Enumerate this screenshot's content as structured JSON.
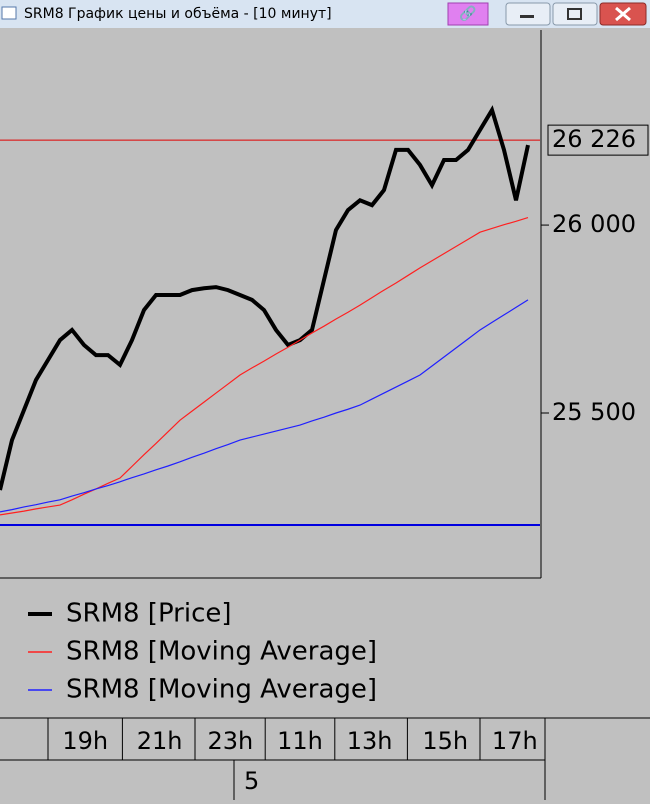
{
  "window": {
    "title": "SRM8 График цены и объёма - [10 минут]"
  },
  "chart_data": {
    "type": "line",
    "x": [
      0,
      1,
      2,
      3,
      4,
      5,
      6,
      7,
      8,
      9,
      10,
      11,
      12,
      13,
      14,
      15,
      16,
      17,
      18,
      19,
      20,
      21,
      22,
      23,
      24,
      25,
      26,
      27,
      28,
      29,
      30,
      31,
      32,
      33,
      34,
      35,
      36,
      37,
      38,
      39,
      40,
      41,
      42,
      43,
      44
    ],
    "xlim": [
      0,
      45
    ],
    "xticks": [
      {
        "value": 7.1,
        "label": "19h"
      },
      {
        "value": 13.3,
        "label": "21h"
      },
      {
        "value": 19.2,
        "label": "23h"
      },
      {
        "value": 25,
        "label": "11h"
      },
      {
        "value": 30.8,
        "label": "13h"
      },
      {
        "value": 37.1,
        "label": "15h"
      },
      {
        "value": 42.9,
        "label": "17h"
      }
    ],
    "date_label": "5",
    "ylim": [
      25069,
      26519
    ],
    "yticks": [
      {
        "value": 25500,
        "label": "25 500"
      },
      {
        "value": 26000,
        "label": "26 000"
      }
    ],
    "hlines": [
      {
        "value": 26226,
        "label": "26 226",
        "color": "#e00000"
      },
      {
        "value": 25202,
        "color": "#0000e0"
      }
    ],
    "series": [
      {
        "name": "SRM8 [Price]",
        "color": "#000000",
        "values": [
          25295,
          25428,
          25508,
          25588,
          25641,
          25694,
          25721,
          25681,
          25654,
          25654,
          25628,
          25694,
          25774,
          25814,
          25814,
          25814,
          25827,
          25832,
          25835,
          25827,
          25814,
          25801,
          25774,
          25721,
          25681,
          25694,
          25721,
          25854,
          25987,
          26040,
          26066,
          26053,
          26093,
          26200,
          26200,
          26160,
          26106,
          26173,
          26173,
          26200,
          26253,
          26306,
          26200,
          26066,
          26213
        ]
      },
      {
        "name": "SRM8 [Moving Average]",
        "color": "#ff2020",
        "values": [
          25229,
          25234,
          25239,
          25245,
          25250,
          25255,
          25269,
          25284,
          25298,
          25313,
          25327,
          25358,
          25389,
          25419,
          25450,
          25481,
          25505,
          25529,
          25553,
          25577,
          25601,
          25620,
          25638,
          25657,
          25675,
          25694,
          25713,
          25731,
          25750,
          25768,
          25787,
          25807,
          25827,
          25846,
          25866,
          25886,
          25905,
          25924,
          25943,
          25962,
          25981,
          25991,
          26001,
          26010,
          26020
        ]
      },
      {
        "name": "SRM8 [Moving Average]",
        "color": "#2020ff",
        "values": [
          25237,
          25243,
          25250,
          25256,
          25263,
          25269,
          25279,
          25288,
          25298,
          25307,
          25317,
          25328,
          25338,
          25349,
          25359,
          25370,
          25382,
          25393,
          25405,
          25416,
          25428,
          25436,
          25444,
          25452,
          25460,
          25468,
          25479,
          25489,
          25500,
          25510,
          25521,
          25537,
          25553,
          25569,
          25585,
          25601,
          25625,
          25649,
          25673,
          25697,
          25721,
          25741,
          25761,
          25781,
          25801
        ]
      }
    ]
  }
}
